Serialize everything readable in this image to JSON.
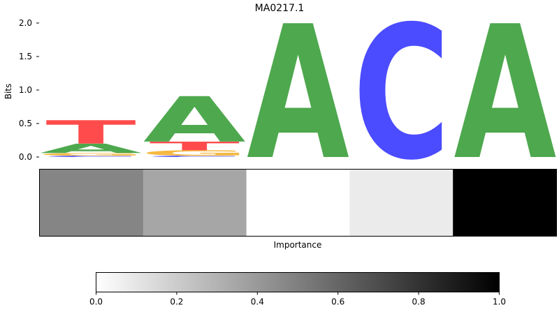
{
  "chart_data": [
    {
      "type": "sequence-logo",
      "title": "MA0217.1",
      "ylabel": "Bits",
      "ylim": [
        0,
        2.0
      ],
      "yticks": [
        "0.0",
        "0.5",
        "1.0",
        "1.5",
        "2.0"
      ],
      "letter_colors": {
        "A": "#4ea84e",
        "C": "#4b4bff",
        "G": "#f5b942",
        "T": "#ff4b4b"
      },
      "positions": [
        {
          "stack": [
            {
              "letter": "C",
              "height": 0.02
            },
            {
              "letter": "G",
              "height": 0.04
            },
            {
              "letter": "A",
              "height": 0.14
            },
            {
              "letter": "T",
              "height": 0.35
            }
          ]
        },
        {
          "stack": [
            {
              "letter": "C",
              "height": 0.02
            },
            {
              "letter": "G",
              "height": 0.08
            },
            {
              "letter": "T",
              "height": 0.13
            },
            {
              "letter": "A",
              "height": 0.68
            }
          ]
        },
        {
          "stack": [
            {
              "letter": "A",
              "height": 2.0
            }
          ]
        },
        {
          "stack": [
            {
              "letter": "C",
              "height": 2.0
            }
          ]
        },
        {
          "stack": [
            {
              "letter": "A",
              "height": 2.0
            }
          ]
        }
      ]
    },
    {
      "type": "heatmap",
      "xlabel": "Importance",
      "values": [
        0.48,
        0.35,
        0.0,
        0.08,
        1.0
      ],
      "colormap": "Greys",
      "colorbar": {
        "range": [
          0.0,
          1.0
        ],
        "ticks": [
          "0.0",
          "0.2",
          "0.4",
          "0.6",
          "0.8",
          "1.0"
        ]
      }
    }
  ]
}
